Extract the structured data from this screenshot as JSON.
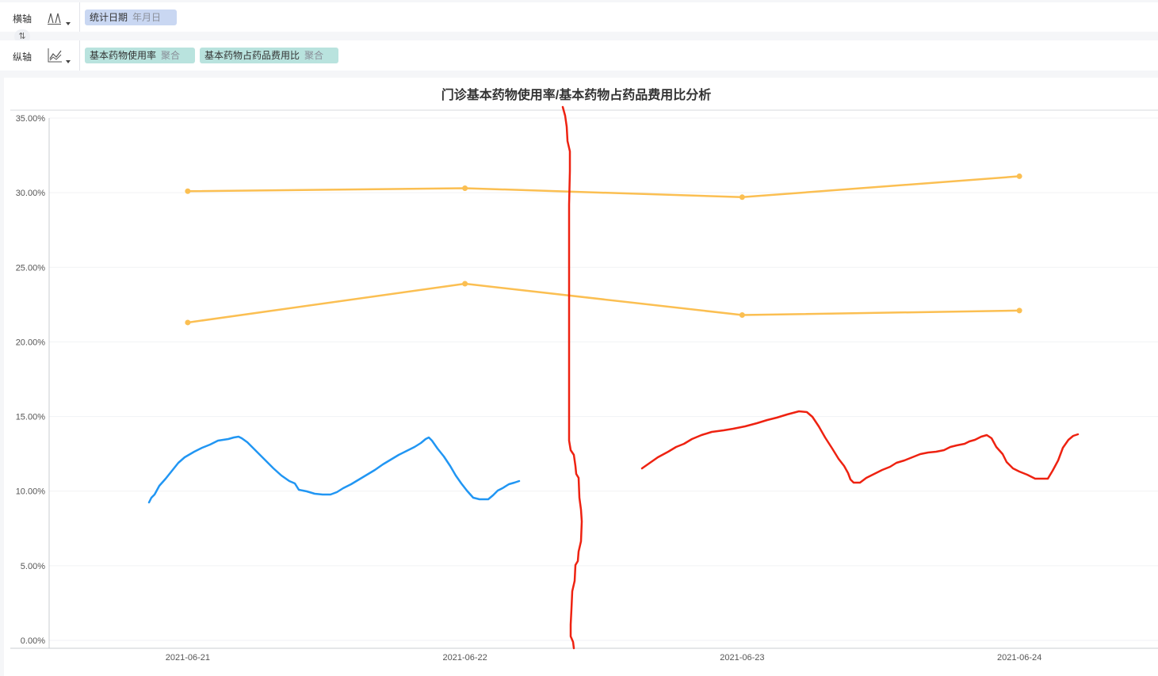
{
  "x_axis_row": {
    "label": "横轴",
    "field": {
      "name": "统计日期",
      "sub": "年月日"
    }
  },
  "y_axis_row": {
    "label": "纵轴",
    "fields": [
      {
        "name": "基本药物使用率",
        "sub": "聚合"
      },
      {
        "name": "基本药物占药品费用比",
        "sub": "聚合"
      }
    ]
  },
  "swap_icon": "swap-vertical-icon",
  "colors": {
    "series": "#fbbf52",
    "blue_pill": "#c9d7f2",
    "teal_pill": "#b9e3de",
    "annotation_red": "#ee2211",
    "annotation_blue": "#2196f3"
  },
  "chart_data": {
    "type": "line",
    "title": "门诊基本药物使用率/基本药物占药品费用比分析",
    "categories": [
      "2021-06-21",
      "2021-06-22",
      "2021-06-23",
      "2021-06-24"
    ],
    "series": [
      {
        "values": [
          30.1,
          30.3,
          29.7,
          31.1
        ]
      },
      {
        "values": [
          21.3,
          23.9,
          21.8,
          22.1
        ]
      }
    ],
    "ylim": [
      0,
      35
    ],
    "y_ticks": [
      "0.00%",
      "5.00%",
      "10.00%",
      "15.00%",
      "20.00%",
      "25.00%",
      "30.00%",
      "35.00%"
    ],
    "grid": true,
    "legend": "none"
  }
}
